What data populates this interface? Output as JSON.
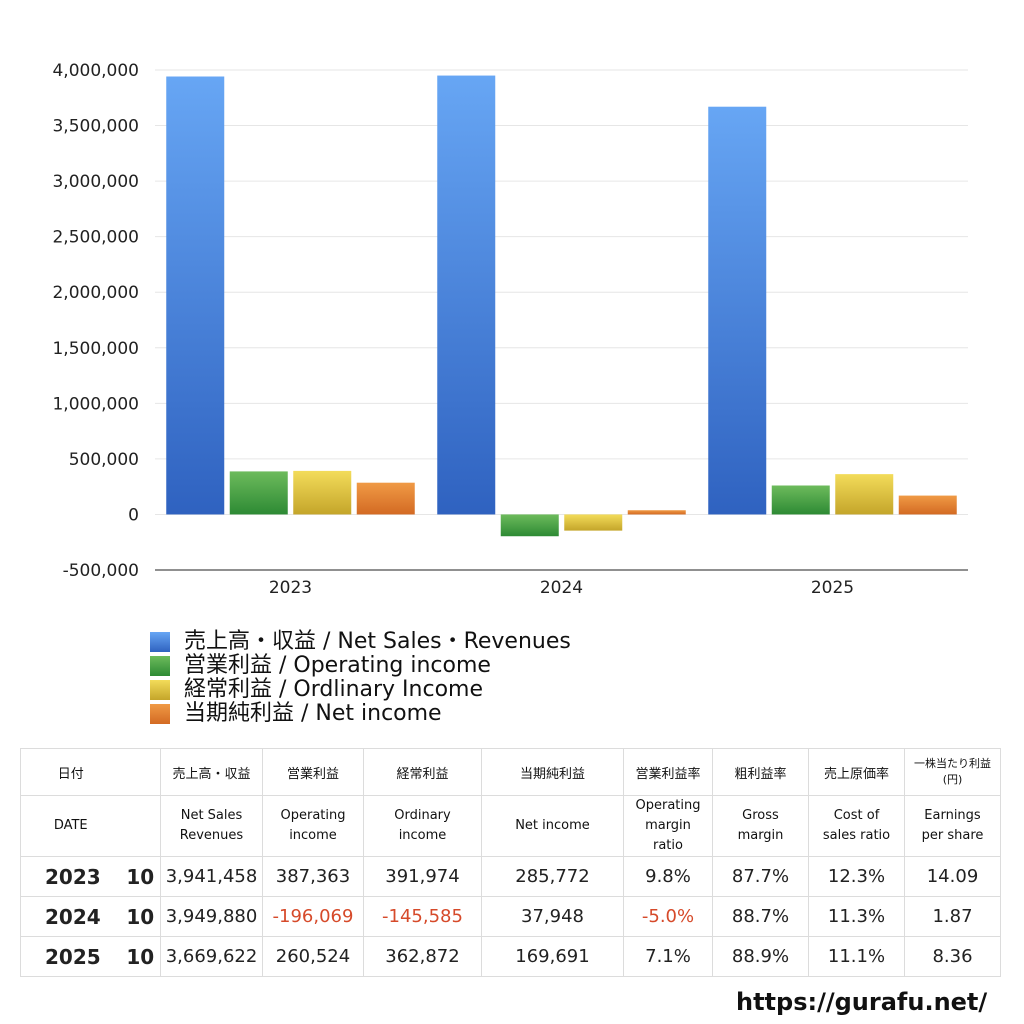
{
  "chart_data": {
    "type": "bar",
    "categories": [
      "2023",
      "2024",
      "2025"
    ],
    "ylim": [
      -500000,
      4000000
    ],
    "yticks": [
      4000000,
      3500000,
      3000000,
      2500000,
      2000000,
      1500000,
      1000000,
      500000,
      0,
      -500000
    ],
    "ytick_labels": [
      "4,000,000",
      "3,500,000",
      "3,000,000",
      "2,500,000",
      "2,000,000",
      "1,500,000",
      "1,000,000",
      "500,000",
      "0",
      "-500,000"
    ],
    "grid": true,
    "legend_position": "bottom",
    "series": [
      {
        "name": "売上高・収益 / Net Sales・Revenues",
        "values": [
          3941458,
          3949880,
          3669622
        ],
        "color_top": "#67a6f4",
        "color_bottom": "#2f62c0"
      },
      {
        "name": "営業利益 / Operating income",
        "values": [
          387363,
          -196069,
          260524
        ],
        "color_top": "#6dbb5c",
        "color_bottom": "#2d8a34"
      },
      {
        "name": "経常利益 / Ordlinary Income",
        "values": [
          391974,
          -145585,
          362872
        ],
        "color_top": "#f3dc5a",
        "color_bottom": "#c4a52a"
      },
      {
        "name": "当期純利益 / Net income",
        "values": [
          285772,
          37948,
          169691
        ],
        "color_top": "#f09a45",
        "color_bottom": "#d36a23"
      }
    ]
  },
  "table": {
    "headers_jp": [
      "日付",
      "売上高・収益",
      "営業利益",
      "経常利益",
      "当期純利益",
      "営業利益率",
      "粗利益率",
      "売上原価率",
      "一株当たり利益\n(円)"
    ],
    "headers_en": [
      "DATE",
      "Net Sales\nRevenues",
      "Operating\nincome",
      "Ordinary\nincome",
      "Net income",
      "Operating\nmargin\nratio",
      "Gross\nmargin",
      "Cost of\nsales ratio",
      "Earnings\nper share"
    ],
    "rows": [
      {
        "year": "2023",
        "month": "10",
        "values": [
          "3,941,458",
          "387,363",
          "391,974",
          "285,772",
          "9.8%",
          "87.7%",
          "12.3%",
          "14.09"
        ]
      },
      {
        "year": "2024",
        "month": "10",
        "values": [
          "3,949,880",
          "-196,069",
          "-145,585",
          "37,948",
          "-5.0%",
          "88.7%",
          "11.3%",
          "1.87"
        ]
      },
      {
        "year": "2025",
        "month": "10",
        "values": [
          "3,669,622",
          "260,524",
          "362,872",
          "169,691",
          "7.1%",
          "88.9%",
          "11.1%",
          "8.36"
        ]
      }
    ]
  },
  "footer": {
    "url": "https://gurafu.net/"
  }
}
